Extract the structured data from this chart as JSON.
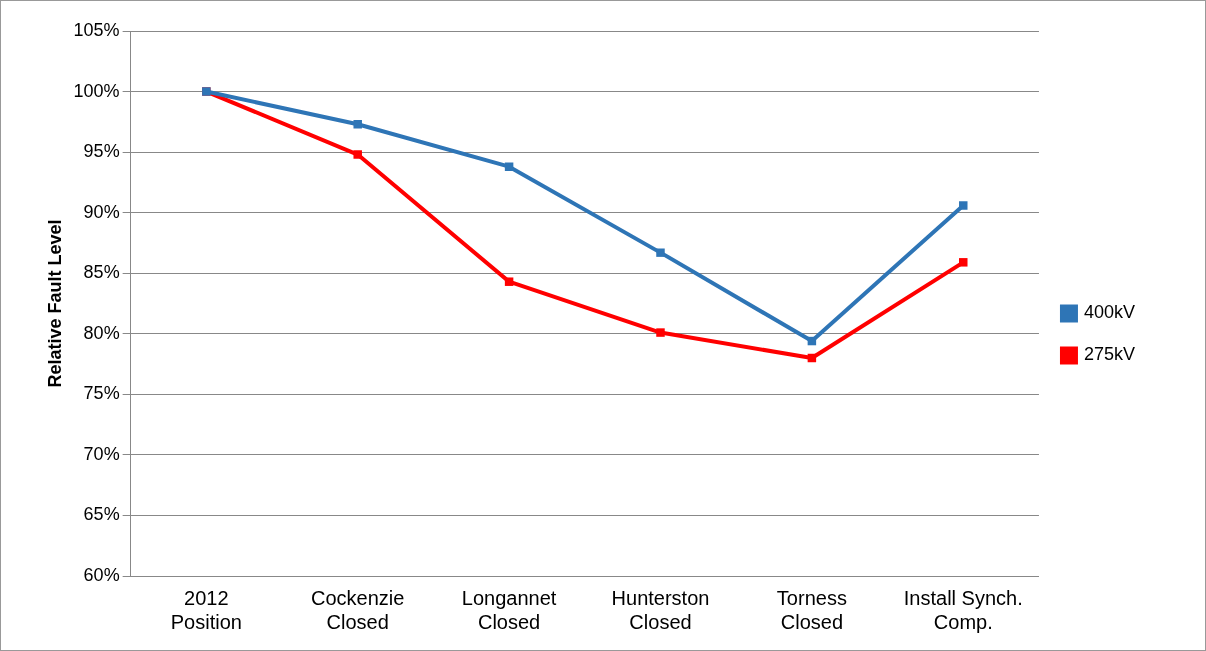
{
  "chart_data": {
    "type": "line",
    "ylabel": "Relative Fault Level",
    "categories": [
      "2012\nPosition",
      "Cockenzie\nClosed",
      "Longannet\nClosed",
      "Hunterston\nClosed",
      "Torness\nClosed",
      "Install Synch.\nComp."
    ],
    "series": [
      {
        "name": "400kV",
        "color": "#2e75b6",
        "values": [
          100,
          97.3,
          93.8,
          86.7,
          79.4,
          90.6
        ]
      },
      {
        "name": "275kV",
        "color": "#ff0000",
        "values": [
          100,
          94.8,
          84.3,
          80.1,
          78.0,
          85.9
        ]
      }
    ],
    "ylim": [
      60,
      105
    ],
    "yticks": [
      {
        "value": 60,
        "label": "60%"
      },
      {
        "value": 65,
        "label": "65%"
      },
      {
        "value": 70,
        "label": "70%"
      },
      {
        "value": 75,
        "label": "75%"
      },
      {
        "value": 80,
        "label": "80%"
      },
      {
        "value": 85,
        "label": "85%"
      },
      {
        "value": 90,
        "label": "90%"
      },
      {
        "value": 95,
        "label": "95%"
      },
      {
        "value": 100,
        "label": "100%"
      },
      {
        "value": 105,
        "label": "105%"
      }
    ],
    "grid": "y",
    "legend": "right",
    "marker": "square",
    "line_style": "solid"
  }
}
